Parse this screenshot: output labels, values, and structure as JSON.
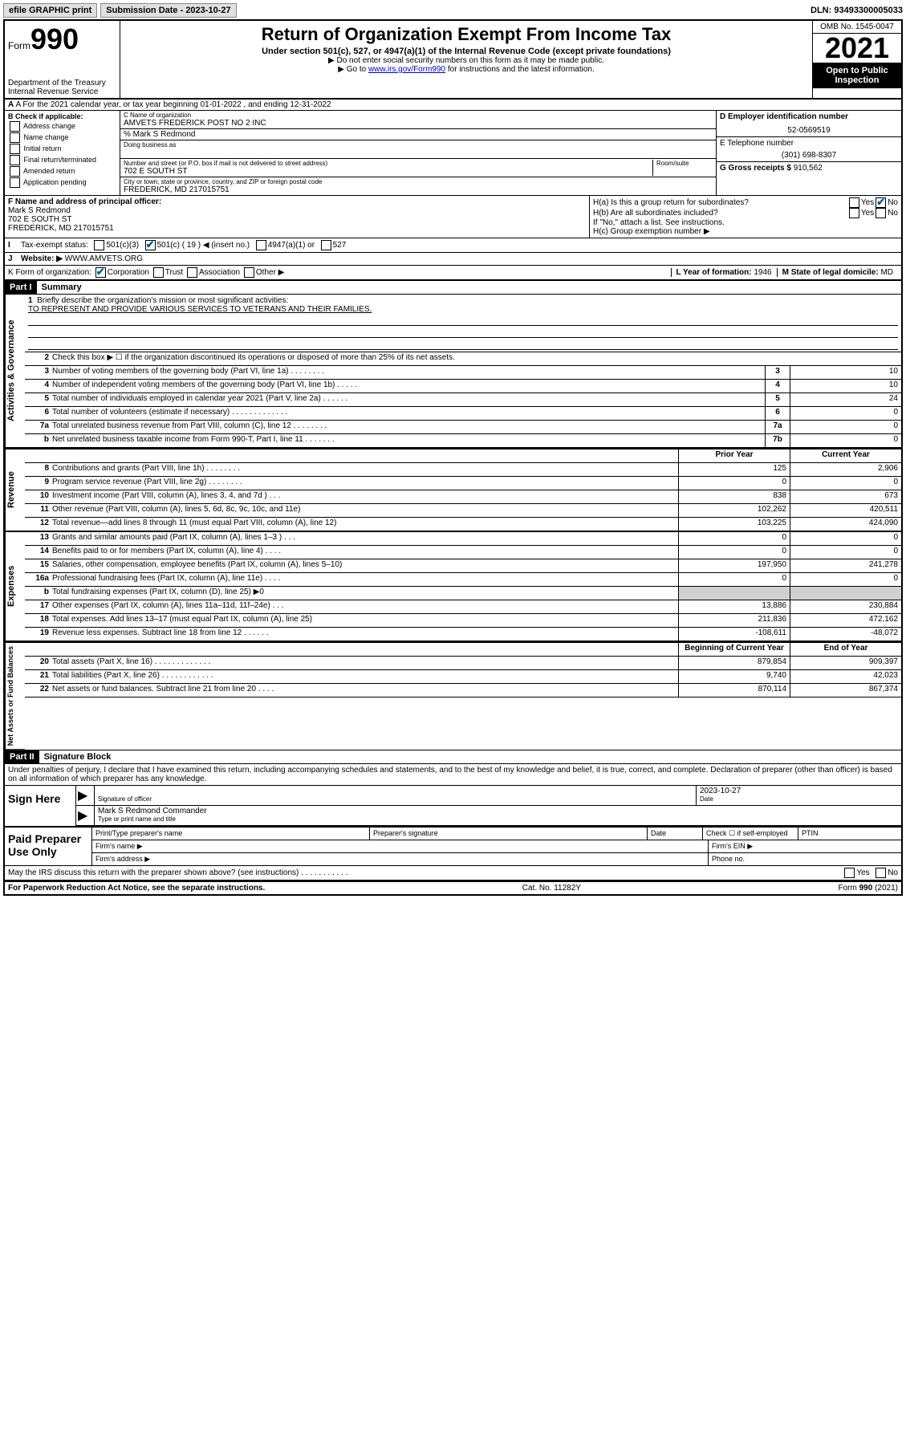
{
  "topbar": {
    "efile": "efile GRAPHIC print",
    "submission_label": "Submission Date - 2023-10-27",
    "dln": "DLN: 93493300005033"
  },
  "header": {
    "form_prefix": "Form",
    "form_number": "990",
    "dept": "Department of the Treasury",
    "irs": "Internal Revenue Service",
    "title": "Return of Organization Exempt From Income Tax",
    "subtitle": "Under section 501(c), 527, or 4947(a)(1) of the Internal Revenue Code (except private foundations)",
    "note1": "▶ Do not enter social security numbers on this form as it may be made public.",
    "note2_pre": "▶ Go to ",
    "note2_link": "www.irs.gov/Form990",
    "note2_post": " for instructions and the latest information.",
    "omb": "OMB No. 1545-0047",
    "year": "2021",
    "open1": "Open to Public",
    "open2": "Inspection"
  },
  "rowA": "A For the 2021 calendar year, or tax year beginning 01-01-2022   , and ending 12-31-2022",
  "colB": {
    "label": "B Check if applicable:",
    "opts": [
      "Address change",
      "Name change",
      "Initial return",
      "Final return/terminated",
      "Amended return",
      "Application pending"
    ]
  },
  "colC": {
    "name_lbl": "C Name of organization",
    "name": "AMVETS FREDERICK POST NO 2 INC",
    "care_lbl": "% Mark S Redmond",
    "dba_lbl": "Doing business as",
    "addr_lbl": "Number and street (or P.O. box if mail is not delivered to street address)",
    "room_lbl": "Room/suite",
    "addr": "702 E SOUTH ST",
    "city_lbl": "City or town, state or province, country, and ZIP or foreign postal code",
    "city": "FREDERICK, MD  217015751"
  },
  "colD": {
    "ein_lbl": "D Employer identification number",
    "ein": "52-0569519",
    "phone_lbl": "E Telephone number",
    "phone": "(301) 698-8307",
    "gross_lbl": "G Gross receipts $ ",
    "gross": "910,562"
  },
  "colF": {
    "lbl": "F Name and address of principal officer:",
    "name": "Mark S Redmond",
    "addr1": "702 E SOUTH ST",
    "addr2": "FREDERICK, MD  217015751"
  },
  "colH": {
    "ha": "H(a)  Is this a group return for subordinates?",
    "hb": "H(b)  Are all subordinates included?",
    "hb_note": "If \"No,\" attach a list. See instructions.",
    "hc": "H(c)  Group exemption number ▶",
    "yes": "Yes",
    "no": "No"
  },
  "rowI": {
    "label": "Tax-exempt status:",
    "o1": "501(c)(3)",
    "o2": "501(c) ( 19 ) ◀ (insert no.)",
    "o3": "4947(a)(1) or",
    "o4": "527"
  },
  "rowJ": {
    "label": "Website: ▶",
    "val": "WWW.AMVETS.ORG"
  },
  "rowK": {
    "label": "K Form of organization:",
    "o1": "Corporation",
    "o2": "Trust",
    "o3": "Association",
    "o4": "Other ▶"
  },
  "rowL": {
    "label": "L Year of formation: ",
    "val": "1946"
  },
  "rowM": {
    "label": "M State of legal domicile:",
    "val": "MD"
  },
  "part1": {
    "hdr": "Part I",
    "title": "Summary",
    "q1": "Briefly describe the organization's mission or most significant activities:",
    "mission": "TO REPRESENT AND PROVIDE VARIOUS SERVICES TO VETERANS AND THEIR FAMILIES.",
    "q2": "Check this box ▶ ☐  if the organization discontinued its operations or disposed of more than 25% of its net assets.",
    "vtab_gov": "Activities & Governance",
    "vtab_rev": "Revenue",
    "vtab_exp": "Expenses",
    "vtab_net": "Net Assets or Fund Balances",
    "col_prior": "Prior Year",
    "col_curr": "Current Year",
    "col_beg": "Beginning of Current Year",
    "col_end": "End of Year",
    "rows_gov": [
      {
        "n": "3",
        "d": "Number of voting members of the governing body (Part VI, line 1a)   .    .    .    .    .    .    .    .",
        "b": "3",
        "v": "10"
      },
      {
        "n": "4",
        "d": "Number of independent voting members of the governing body (Part VI, line 1b)  .    .    .    .    .",
        "b": "4",
        "v": "10"
      },
      {
        "n": "5",
        "d": "Total number of individuals employed in calendar year 2021 (Part V, line 2a)  .    .    .    .    .    .",
        "b": "5",
        "v": "24"
      },
      {
        "n": "6",
        "d": "Total number of volunteers (estimate if necessary)   .    .    .    .    .    .    .    .    .    .    .    .    .",
        "b": "6",
        "v": "0"
      },
      {
        "n": "7a",
        "d": "Total unrelated business revenue from Part VIII, column (C), line 12  .    .    .    .    .    .    .    .",
        "b": "7a",
        "v": "0"
      },
      {
        "n": "b",
        "d": "Net unrelated business taxable income from Form 990-T, Part I, line 11  .    .    .    .    .    .    .",
        "b": "7b",
        "v": "0"
      }
    ],
    "rows_rev": [
      {
        "n": "8",
        "d": "Contributions and grants (Part VIII, line 1h)   .    .    .    .    .    .    .    .",
        "p": "125",
        "c": "2,906"
      },
      {
        "n": "9",
        "d": "Program service revenue (Part VIII, line 2g)   .    .    .    .    .    .    .    .",
        "p": "0",
        "c": "0"
      },
      {
        "n": "10",
        "d": "Investment income (Part VIII, column (A), lines 3, 4, and 7d )   .    .    .",
        "p": "838",
        "c": "673"
      },
      {
        "n": "11",
        "d": "Other revenue (Part VIII, column (A), lines 5, 6d, 8c, 9c, 10c, and 11e)",
        "p": "102,262",
        "c": "420,511"
      },
      {
        "n": "12",
        "d": "Total revenue—add lines 8 through 11 (must equal Part VIII, column (A), line 12)",
        "p": "103,225",
        "c": "424,090"
      }
    ],
    "rows_exp": [
      {
        "n": "13",
        "d": "Grants and similar amounts paid (Part IX, column (A), lines 1–3 )  .    .    .",
        "p": "0",
        "c": "0"
      },
      {
        "n": "14",
        "d": "Benefits paid to or for members (Part IX, column (A), line 4)  .    .    .    .",
        "p": "0",
        "c": "0"
      },
      {
        "n": "15",
        "d": "Salaries, other compensation, employee benefits (Part IX, column (A), lines 5–10)",
        "p": "197,950",
        "c": "241,278"
      },
      {
        "n": "16a",
        "d": "Professional fundraising fees (Part IX, column (A), line 11e)  .    .    .    .",
        "p": "0",
        "c": "0"
      },
      {
        "n": "b",
        "d": "Total fundraising expenses (Part IX, column (D), line 25) ▶0",
        "p": "",
        "c": "",
        "shade": true
      },
      {
        "n": "17",
        "d": "Other expenses (Part IX, column (A), lines 11a–11d, 11f–24e)  .    .    .",
        "p": "13,886",
        "c": "230,884"
      },
      {
        "n": "18",
        "d": "Total expenses. Add lines 13–17 (must equal Part IX, column (A), line 25)",
        "p": "211,836",
        "c": "472,162"
      },
      {
        "n": "19",
        "d": "Revenue less expenses. Subtract line 18 from line 12  .    .    .    .    .    .",
        "p": "-108,611",
        "c": "-48,072"
      }
    ],
    "rows_net": [
      {
        "n": "20",
        "d": "Total assets (Part X, line 16)  .    .    .    .    .    .    .    .    .    .    .    .    .",
        "p": "879,854",
        "c": "909,397"
      },
      {
        "n": "21",
        "d": "Total liabilities (Part X, line 26)  .    .    .    .    .    .    .    .    .    .    .    .",
        "p": "9,740",
        "c": "42,023"
      },
      {
        "n": "22",
        "d": "Net assets or fund balances. Subtract line 21 from line 20  .    .    .    .",
        "p": "870,114",
        "c": "867,374"
      }
    ]
  },
  "part2": {
    "hdr": "Part II",
    "title": "Signature Block",
    "intro": "Under penalties of perjury, I declare that I have examined this return, including accompanying schedules and statements, and to the best of my knowledge and belief, it is true, correct, and complete. Declaration of preparer (other than officer) is based on all information of which preparer has any knowledge.",
    "sign_here": "Sign Here",
    "sig_officer": "Signature of officer",
    "date_lbl": "Date",
    "date_val": "2023-10-27",
    "name_title": "Mark S Redmond  Commander",
    "name_lbl": "Type or print name and title",
    "paid": "Paid Preparer Use Only",
    "p_name": "Print/Type preparer's name",
    "p_sig": "Preparer's signature",
    "p_date": "Date",
    "p_check": "Check ☐ if self-employed",
    "p_ptin": "PTIN",
    "firm_name": "Firm's name   ▶",
    "firm_ein": "Firm's EIN ▶",
    "firm_addr": "Firm's address ▶",
    "firm_phone": "Phone no.",
    "may_irs": "May the IRS discuss this return with the preparer shown above? (see instructions)   .    .    .    .    .    .    .    .    .    .    ."
  },
  "footer": {
    "left": "For Paperwork Reduction Act Notice, see the separate instructions.",
    "mid": "Cat. No. 11282Y",
    "right": "Form 990 (2021)"
  }
}
